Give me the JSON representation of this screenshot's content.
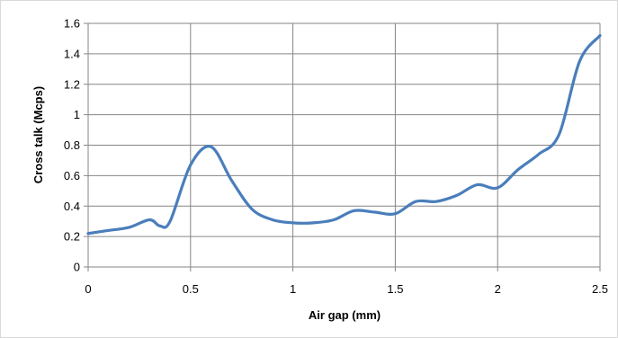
{
  "chart_data": {
    "type": "line",
    "title": "",
    "xlabel": "Air gap (mm)",
    "ylabel": "Cross talk (Mcps)",
    "xlim": [
      0,
      2.5
    ],
    "ylim": [
      0,
      1.6
    ],
    "x_ticks": [
      "0",
      "0.5",
      "1",
      "1.5",
      "2",
      "2.5"
    ],
    "y_ticks": [
      "0",
      "0.2",
      "0.4",
      "0.6",
      "0.8",
      "1",
      "1.2",
      "1.4",
      "1.6"
    ],
    "grid": "vertical and horizontal",
    "legend": "none",
    "series": [
      {
        "color": "#4a7ebb",
        "x": [
          0,
          0.1,
          0.2,
          0.3,
          0.35,
          0.4,
          0.5,
          0.6,
          0.7,
          0.8,
          0.9,
          1.0,
          1.1,
          1.2,
          1.3,
          1.4,
          1.5,
          1.6,
          1.7,
          1.8,
          1.9,
          2.0,
          2.1,
          2.2,
          2.3,
          2.4,
          2.5
        ],
        "y": [
          0.22,
          0.24,
          0.26,
          0.31,
          0.27,
          0.3,
          0.67,
          0.79,
          0.57,
          0.38,
          0.31,
          0.29,
          0.29,
          0.31,
          0.37,
          0.36,
          0.35,
          0.43,
          0.43,
          0.47,
          0.54,
          0.52,
          0.64,
          0.74,
          0.87,
          1.35,
          1.52
        ]
      }
    ]
  }
}
